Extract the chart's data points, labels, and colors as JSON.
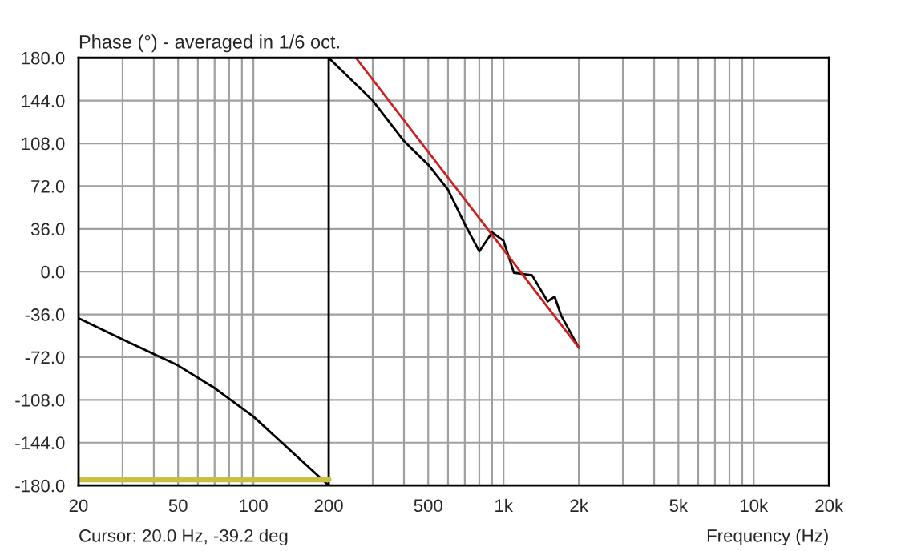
{
  "chart_data": {
    "type": "line",
    "title": "Phase (°) - averaged in 1/6 oct.",
    "xlabel": "Frequency (Hz)",
    "log": "x",
    "series": [
      {
        "color": "#000000",
        "x": [
          20,
          30,
          50,
          70,
          100,
          150,
          200,
          200,
          300,
          400,
          500,
          600,
          700,
          800,
          900,
          1000,
          1100,
          1300,
          1500,
          1600,
          1700,
          2000
        ],
        "values": [
          -39.2,
          -57,
          -79,
          -98,
          -122,
          -156,
          -180,
          180,
          144,
          110,
          90,
          69,
          40,
          17,
          33,
          26,
          -1,
          -3,
          -25,
          -21,
          -37,
          -64
        ]
      },
      {
        "color": "#cc2020",
        "x": [
          257,
          2000
        ],
        "values": [
          180,
          -64
        ]
      },
      {
        "color": "#c8c040",
        "x": [
          20,
          200
        ],
        "values": [
          -175,
          -175
        ]
      }
    ],
    "xlim": [
      20,
      20000
    ],
    "ylim": [
      -180,
      180
    ],
    "xticks": [
      20,
      {
        "value": 30,
        "label": null
      },
      {
        "value": 40,
        "label": null
      },
      50,
      {
        "value": 60,
        "label": null
      },
      {
        "value": 70,
        "label": null
      },
      {
        "value": 80,
        "label": null
      },
      {
        "value": 90,
        "label": null
      },
      100,
      200,
      {
        "value": 300,
        "label": null
      },
      {
        "value": 400,
        "label": null
      },
      500,
      {
        "value": 600,
        "label": null
      },
      {
        "value": 700,
        "label": null
      },
      {
        "value": 800,
        "label": null
      },
      {
        "value": 900,
        "label": null
      },
      {
        "value": 1000,
        "label": "1k"
      },
      {
        "value": 2000,
        "label": "2k"
      },
      {
        "value": 3000,
        "label": null
      },
      {
        "value": 4000,
        "label": null
      },
      {
        "value": 5000,
        "label": "5k"
      },
      {
        "value": 6000,
        "label": null
      },
      {
        "value": 7000,
        "label": null
      },
      {
        "value": 8000,
        "label": null
      },
      {
        "value": 9000,
        "label": null
      },
      {
        "value": 10000,
        "label": "10k"
      },
      {
        "value": 20000,
        "label": "20k"
      }
    ],
    "yticks": [
      {
        "value": -180,
        "label": "-180.0"
      },
      {
        "value": -144,
        "label": "-144.0"
      },
      {
        "value": -108,
        "label": "-108.0"
      },
      {
        "value": -72,
        "label": "-72.0"
      },
      {
        "value": -36,
        "label": "-36.0"
      },
      {
        "value": 0,
        "label": "0.0"
      },
      {
        "value": 36,
        "label": "36.0"
      },
      {
        "value": 72,
        "label": "72.0"
      },
      {
        "value": 108,
        "label": "108.0"
      },
      {
        "value": 144,
        "label": "144.0"
      },
      {
        "value": 180,
        "label": "180.0"
      }
    ],
    "grid": true,
    "legend": false,
    "annotations": [
      "Cursor: 20.0 Hz, -39.2 deg"
    ]
  }
}
